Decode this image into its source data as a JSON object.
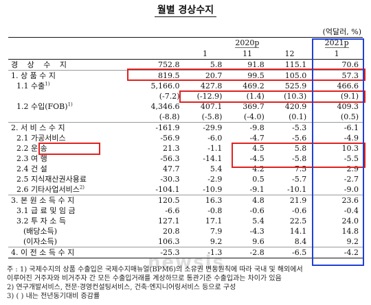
{
  "title": "월별 경상수지",
  "unit": "(억달러, %)",
  "header": {
    "year_2020": "2020p",
    "year_2021": "2021p",
    "months": [
      "1",
      "11",
      "12",
      "1"
    ]
  },
  "rows": [
    {
      "label": "경 상 수 지",
      "values": [
        "752.8",
        "5.8",
        "91.8",
        "115.1",
        "70.6"
      ]
    },
    {
      "label": "1. 상 품 수 지",
      "values": [
        "819.5",
        "20.7",
        "99.5",
        "105.0",
        "57.3"
      ]
    },
    {
      "label": "1.1 수출",
      "sup": "1)",
      "values": [
        "5,166.0",
        "427.8",
        "469.2",
        "525.9",
        "466.6"
      ]
    },
    {
      "label": "",
      "values": [
        "(-7.2)",
        "(-12.9)",
        "(1.4)",
        "(10.3)",
        "(9.1)"
      ]
    },
    {
      "label": "1.2 수입(FOB)",
      "sup": "1)",
      "values": [
        "4,346.6",
        "407.1",
        "369.7",
        "420.9",
        "409.3"
      ]
    },
    {
      "label": "",
      "values": [
        "(-8.8)",
        "(-5.8)",
        "(-4.0)",
        "(0.1)",
        "(0.5)"
      ]
    },
    {
      "label": "2. 서 비 스 수 지",
      "values": [
        "-161.9",
        "-29.9",
        "-9.8",
        "-5.3",
        "-6.1"
      ]
    },
    {
      "label": "2.1 가공서비스",
      "values": [
        "-56.9",
        "-6.0",
        "-4.7",
        "-5.6",
        "-4.9"
      ]
    },
    {
      "label": "2.2 운      송",
      "values": [
        "21.3",
        "-1.1",
        "4.5",
        "5.8",
        "10.3"
      ]
    },
    {
      "label": "2.3 여      행",
      "values": [
        "-56.3",
        "-14.1",
        "-4.5",
        "-5.8",
        "-5.5"
      ]
    },
    {
      "label": "2.4 건      설",
      "values": [
        "47.7",
        "5.4",
        "4.2",
        "7.5",
        "2.9"
      ]
    },
    {
      "label": "2.5 지식재산권사용료",
      "values": [
        "-30.3",
        "-2.9",
        "0.5",
        "-5.7",
        "-2.7"
      ]
    },
    {
      "label": "2.6 기타사업서비스",
      "sup": "2)",
      "values": [
        "-104.1",
        "-10.9",
        "-9.1",
        "-10.1",
        "-9.0"
      ]
    },
    {
      "label": "3. 본 원 소 득 수 지",
      "values": [
        "120.5",
        "16.3",
        "4.8",
        "21.9",
        "23.6"
      ]
    },
    {
      "label": "3.1 급 료 및 임 금",
      "values": [
        "-6.6",
        "-0.8",
        "-0.6",
        "-0.6",
        "-0.4"
      ]
    },
    {
      "label": "3.2 투  자  소  득",
      "values": [
        "127.1",
        "17.1",
        "5.4",
        "22.5",
        "24.0"
      ]
    },
    {
      "label": "(배당소득)",
      "values": [
        "20.8",
        "7.9",
        "-4.3",
        "14.1",
        "14.8"
      ]
    },
    {
      "label": "(이자소득)",
      "values": [
        "106.3",
        "9.2",
        "9.6",
        "8.4",
        "9.2"
      ]
    },
    {
      "label": "4. 이 전 소 득 수 지",
      "values": [
        "-25.3",
        "-1.3",
        "-2.8",
        "-6.5",
        "-4.2"
      ]
    }
  ],
  "notes": [
    "주 : 1) 국제수지의 상품 수출입은 국제수지매뉴얼(BPM6)의 소유권 변동원칙에 따라 국내 및 해외에서",
    "        이루어진 거주자와 비거주자 간 모든 수출입거래를 계상하므로 통관기준 수출입과는 차이가 있음",
    "     2) 연구개발서비스, 전문·경영컨설팅서비스, 건축·엔지니어링서비스 등으로 구성",
    "     3) ( ) 내는 전년동기대비 증감률"
  ],
  "watermark": "newsis",
  "colors": {
    "red_box": "#e0201e",
    "blue_box": "#1f3fd4"
  }
}
